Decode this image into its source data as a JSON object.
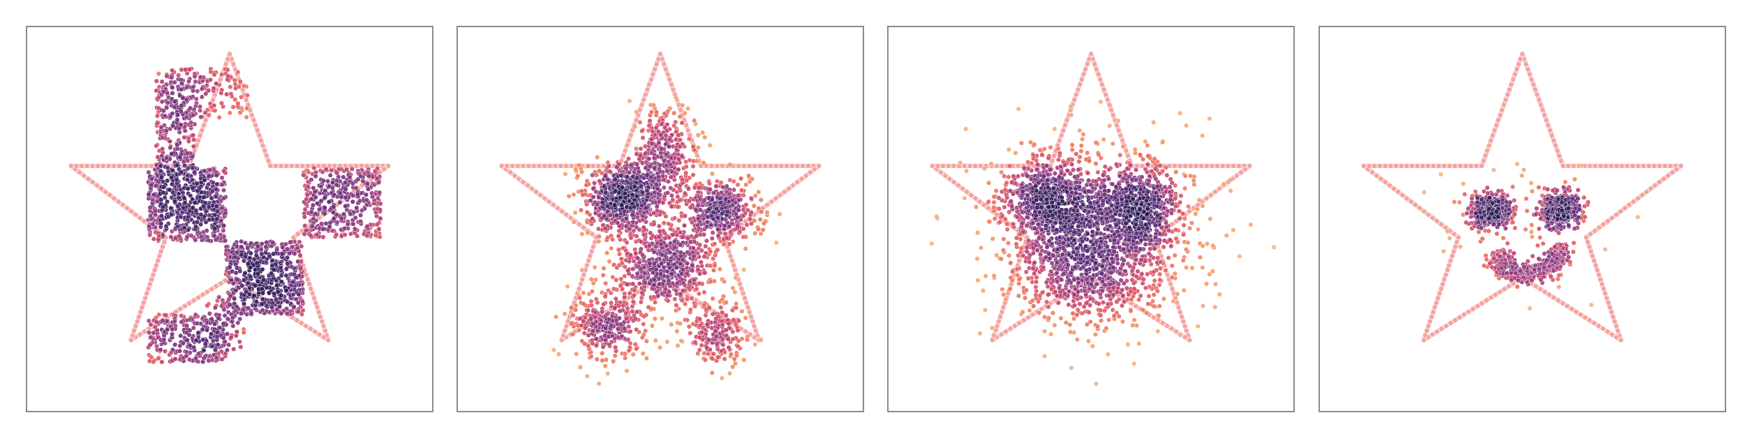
{
  "figure": {
    "background": "#ffffff",
    "frame_color": "#8a8a8a",
    "boundary_color": "#f4a3a1",
    "colormap": [
      "#2b1a55",
      "#5b2a76",
      "#8e3a7f",
      "#c4456f",
      "#e8635f",
      "#f3955f",
      "#f6b98a"
    ]
  },
  "chart_data": [
    {
      "type": "scatter",
      "panel": 1,
      "xlim": [
        -1.05,
        1.05
      ],
      "ylim": [
        -1.05,
        1.05
      ],
      "grid": false,
      "legend": "none",
      "boundary": {
        "shape": "five-pointed star",
        "vertices": [
          [
            0,
            0.9
          ],
          [
            0.21,
            0.29
          ],
          [
            0.82,
            0.29
          ],
          [
            0.33,
            -0.1
          ],
          [
            0.51,
            -0.66
          ],
          [
            0,
            -0.32
          ],
          [
            -0.51,
            -0.66
          ],
          [
            -0.33,
            -0.1
          ],
          [
            -0.82,
            0.29
          ],
          [
            -0.21,
            0.29
          ]
        ]
      },
      "scatter_clusters": [
        {
          "shape": "rect",
          "x": [
            -0.38,
            -0.18
          ],
          "y": [
            0.28,
            0.82
          ],
          "n": 260
        },
        {
          "shape": "rect",
          "x": [
            -0.42,
            -0.02
          ],
          "y": [
            -0.12,
            0.28
          ],
          "n": 560
        },
        {
          "shape": "rect",
          "x": [
            -0.02,
            0.38
          ],
          "y": [
            -0.52,
            -0.12
          ],
          "n": 560
        },
        {
          "shape": "rect",
          "x": [
            0.38,
            0.78
          ],
          "y": [
            -0.1,
            0.28
          ],
          "n": 380
        },
        {
          "shape": "rect",
          "x": [
            -0.42,
            -0.02
          ],
          "y": [
            -0.78,
            -0.52
          ],
          "n": 260
        },
        {
          "shape": "rect",
          "x": [
            -0.12,
            0.08
          ],
          "y": [
            -0.72,
            -0.42
          ],
          "n": 70
        },
        {
          "shape": "rect",
          "x": [
            -0.18,
            0.1
          ],
          "y": [
            0.55,
            0.82
          ],
          "n": 90
        }
      ]
    },
    {
      "type": "scatter",
      "panel": 2,
      "xlim": [
        -1.05,
        1.05
      ],
      "ylim": [
        -1.05,
        1.05
      ],
      "grid": false,
      "legend": "none",
      "boundary": {
        "shape": "five-pointed star",
        "vertices": [
          [
            0,
            0.9
          ],
          [
            0.21,
            0.29
          ],
          [
            0.82,
            0.29
          ],
          [
            0.33,
            -0.1
          ],
          [
            0.51,
            -0.66
          ],
          [
            0,
            -0.32
          ],
          [
            -0.51,
            -0.66
          ],
          [
            -0.33,
            -0.1
          ],
          [
            -0.82,
            0.29
          ],
          [
            -0.21,
            0.29
          ]
        ]
      },
      "scatter_clusters": [
        {
          "shape": "gauss",
          "x": -0.18,
          "y": 0.12,
          "sx": 0.11,
          "sy": 0.09,
          "n": 650
        },
        {
          "shape": "gauss",
          "x": 0.02,
          "y": 0.36,
          "sx": 0.08,
          "sy": 0.12,
          "n": 320
        },
        {
          "shape": "gauss",
          "x": 0.31,
          "y": 0.04,
          "sx": 0.1,
          "sy": 0.09,
          "n": 420
        },
        {
          "shape": "gauss",
          "x": 0.02,
          "y": -0.26,
          "sx": 0.13,
          "sy": 0.12,
          "n": 620
        },
        {
          "shape": "gauss",
          "x": -0.28,
          "y": -0.58,
          "sx": 0.1,
          "sy": 0.1,
          "n": 320
        },
        {
          "shape": "gauss",
          "x": 0.3,
          "y": -0.62,
          "sx": 0.08,
          "sy": 0.08,
          "n": 200
        }
      ]
    },
    {
      "type": "scatter",
      "panel": 3,
      "xlim": [
        -1.05,
        1.05
      ],
      "ylim": [
        -1.05,
        1.05
      ],
      "grid": false,
      "legend": "none",
      "boundary": {
        "shape": "five-pointed star",
        "vertices": [
          [
            0,
            0.9
          ],
          [
            0.21,
            0.29
          ],
          [
            0.82,
            0.29
          ],
          [
            0.33,
            -0.1
          ],
          [
            0.51,
            -0.66
          ],
          [
            0,
            -0.32
          ],
          [
            -0.51,
            -0.66
          ],
          [
            -0.33,
            -0.1
          ],
          [
            -0.82,
            0.29
          ],
          [
            -0.21,
            0.29
          ]
        ]
      },
      "scatter_clusters": [
        {
          "shape": "gauss",
          "x": -0.2,
          "y": 0.1,
          "sx": 0.13,
          "sy": 0.12,
          "n": 700
        },
        {
          "shape": "gauss",
          "x": 0.24,
          "y": 0.06,
          "sx": 0.12,
          "sy": 0.12,
          "n": 600
        },
        {
          "shape": "gauss",
          "x": -0.02,
          "y": -0.26,
          "sx": 0.2,
          "sy": 0.15,
          "n": 800
        },
        {
          "shape": "gauss",
          "x": 0.05,
          "y": -0.05,
          "sx": 0.3,
          "sy": 0.28,
          "n": 450
        }
      ]
    },
    {
      "type": "scatter",
      "panel": 4,
      "xlim": [
        -1.05,
        1.05
      ],
      "ylim": [
        -1.05,
        1.05
      ],
      "grid": false,
      "legend": "none",
      "boundary": {
        "shape": "five-pointed star",
        "vertices": [
          [
            0,
            0.9
          ],
          [
            0.21,
            0.29
          ],
          [
            0.82,
            0.29
          ],
          [
            0.33,
            -0.1
          ],
          [
            0.51,
            -0.66
          ],
          [
            0,
            -0.32
          ],
          [
            -0.51,
            -0.66
          ],
          [
            -0.33,
            -0.1
          ],
          [
            -0.82,
            0.29
          ],
          [
            -0.21,
            0.29
          ]
        ]
      },
      "scatter_clusters": [
        {
          "shape": "gauss",
          "x": -0.16,
          "y": 0.05,
          "sx": 0.05,
          "sy": 0.045,
          "n": 380
        },
        {
          "shape": "gauss",
          "x": 0.2,
          "y": 0.05,
          "sx": 0.05,
          "sy": 0.045,
          "n": 380
        },
        {
          "shape": "arc",
          "cx": 0.02,
          "cy": -0.12,
          "r": 0.18,
          "a0": 200,
          "a1": 355,
          "spread": 0.03,
          "n": 420
        },
        {
          "shape": "gauss",
          "x": 0.02,
          "y": 0.0,
          "sx": 0.22,
          "sy": 0.15,
          "n": 80
        }
      ]
    }
  ]
}
